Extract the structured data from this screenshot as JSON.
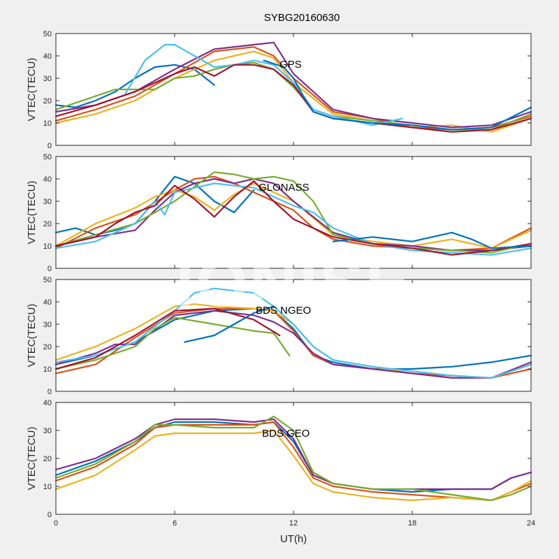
{
  "figure": {
    "title": "SYBG20160630",
    "watermark": "IONISE",
    "background_color": "#f0f0f0",
    "axes_color": "#ffffff"
  },
  "chart_data": [
    {
      "type": "line",
      "label": "GPS",
      "xlabel": "",
      "ylabel": "VTEC(TECU)",
      "xlim": [
        0,
        24
      ],
      "ylim": [
        0,
        50
      ],
      "xticks": [
        0,
        6,
        12,
        18,
        24
      ],
      "yticks": [
        0,
        10,
        20,
        30,
        40,
        50
      ],
      "series": [
        {
          "color": "#0072BD",
          "x": [
            0,
            1,
            2,
            3,
            4,
            5,
            6,
            7,
            8
          ],
          "y": [
            18,
            17,
            20,
            24,
            30,
            35,
            36,
            34,
            27
          ]
        },
        {
          "color": "#D95319",
          "x": [
            0,
            2,
            4,
            6,
            8,
            10,
            11,
            12,
            14,
            16,
            18,
            20,
            22,
            24
          ],
          "y": [
            11,
            16,
            22,
            32,
            42,
            44,
            40,
            30,
            15,
            12,
            8,
            7,
            8,
            13
          ]
        },
        {
          "color": "#EDB120",
          "x": [
            0,
            2,
            4,
            6,
            8,
            10,
            11,
            12,
            14,
            16,
            18,
            20,
            22,
            24
          ],
          "y": [
            10,
            14,
            20,
            30,
            38,
            42,
            39,
            28,
            14,
            11,
            8,
            9,
            6,
            12
          ]
        },
        {
          "color": "#7E2F8E",
          "x": [
            0,
            2,
            4,
            6,
            8,
            10,
            11,
            12,
            14,
            16,
            18,
            20,
            22,
            24
          ],
          "y": [
            15,
            18,
            24,
            34,
            43,
            45,
            46,
            32,
            16,
            12,
            10,
            8,
            9,
            15
          ]
        },
        {
          "color": "#77AC30",
          "x": [
            0,
            1,
            2,
            3,
            4,
            5,
            6,
            7,
            8,
            9,
            10,
            11,
            12,
            13,
            14,
            16,
            18,
            20,
            22,
            24
          ],
          "y": [
            16,
            19,
            22,
            25,
            25,
            25,
            30,
            31,
            34,
            36,
            37,
            34,
            26,
            16,
            13,
            11,
            9,
            7,
            7,
            14
          ]
        },
        {
          "color": "#4DBEEE",
          "x": [
            3.5,
            4.5,
            5.5,
            6,
            7,
            8,
            9,
            10,
            11,
            12,
            13,
            14,
            16,
            17.5
          ],
          "y": [
            23,
            38,
            45,
            45,
            40,
            35,
            36,
            38,
            36,
            28,
            16,
            13,
            9,
            12
          ]
        },
        {
          "color": "#A2142F",
          "x": [
            0,
            2,
            4,
            6,
            7,
            8,
            9,
            10,
            11,
            12,
            13,
            14,
            16,
            18,
            20,
            22,
            24
          ],
          "y": [
            13,
            18,
            24,
            32,
            35,
            31,
            36,
            36,
            34,
            27,
            15,
            12,
            10,
            8,
            6,
            7,
            12
          ]
        },
        {
          "color": "#0072BD",
          "x": [
            10.5,
            11.5,
            12,
            12.5,
            13,
            14,
            16,
            18,
            20,
            22,
            24
          ],
          "y": [
            38,
            35,
            30,
            22,
            15,
            12,
            10,
            9,
            7,
            8,
            17
          ]
        }
      ]
    },
    {
      "type": "line",
      "label": "GLONASS",
      "xlabel": "",
      "ylabel": "VTEC(TECU)",
      "xlim": [
        0,
        24
      ],
      "ylim": [
        0,
        50
      ],
      "xticks": [
        0,
        6,
        12,
        18,
        24
      ],
      "yticks": [
        0,
        10,
        20,
        30,
        40,
        50
      ],
      "series": [
        {
          "color": "#0072BD",
          "x": [
            0,
            1,
            2,
            3,
            4,
            5,
            6,
            7,
            8,
            9,
            10
          ],
          "y": [
            16,
            18,
            15,
            17,
            20,
            30,
            41,
            38,
            30,
            25,
            35
          ]
        },
        {
          "color": "#D95319",
          "x": [
            0,
            2,
            4,
            6,
            7,
            8,
            9,
            10,
            11,
            12,
            13,
            14,
            16,
            18,
            20,
            22,
            24
          ],
          "y": [
            9,
            18,
            24,
            35,
            40,
            41,
            38,
            34,
            30,
            26,
            18,
            13,
            10,
            9,
            8,
            9,
            18
          ]
        },
        {
          "color": "#EDB120",
          "x": [
            0,
            2,
            4,
            5,
            6,
            7,
            8,
            9,
            10,
            12,
            14,
            16,
            18,
            20,
            22,
            24
          ],
          "y": [
            10,
            20,
            27,
            32,
            35,
            32,
            26,
            33,
            38,
            30,
            15,
            12,
            10,
            13,
            9,
            17
          ]
        },
        {
          "color": "#7E2F8E",
          "x": [
            0,
            2,
            4,
            5,
            6,
            7,
            8,
            9,
            10,
            11,
            12,
            14,
            16,
            18,
            20,
            22,
            24
          ],
          "y": [
            10,
            14,
            17,
            26,
            34,
            38,
            40,
            38,
            40,
            38,
            30,
            16,
            11,
            10,
            8,
            8,
            10
          ]
        },
        {
          "color": "#77AC30",
          "x": [
            0,
            2,
            4,
            6,
            8,
            9,
            10,
            11,
            12,
            13,
            14,
            16,
            18,
            20,
            22,
            24
          ],
          "y": [
            10,
            15,
            20,
            30,
            43,
            42,
            40,
            41,
            39,
            30,
            15,
            11,
            9,
            8,
            7,
            11
          ]
        },
        {
          "color": "#4DBEEE",
          "x": [
            0,
            2,
            4,
            5,
            5.5,
            6,
            8,
            10,
            11,
            12,
            13,
            14,
            16,
            18,
            20,
            22,
            24
          ],
          "y": [
            9,
            12,
            20,
            30,
            24,
            34,
            38,
            36,
            32,
            28,
            25,
            18,
            11,
            8,
            7,
            6,
            9
          ]
        },
        {
          "color": "#A2142F",
          "x": [
            0,
            2,
            3,
            4,
            5,
            6,
            7,
            8,
            9,
            10,
            11,
            12,
            14,
            16,
            18,
            20,
            22,
            24
          ],
          "y": [
            10,
            14,
            20,
            25,
            28,
            37,
            31,
            23,
            32,
            39,
            30,
            22,
            14,
            11,
            9,
            6,
            8,
            11
          ]
        },
        {
          "color": "#0072BD",
          "x": [
            14,
            16,
            18,
            20,
            21,
            22,
            24
          ],
          "y": [
            12,
            14,
            12,
            16,
            13,
            9,
            10
          ]
        }
      ]
    },
    {
      "type": "line",
      "label": "BDS NGEO",
      "xlabel": "",
      "ylabel": "VTEC(TECU)",
      "xlim": [
        0,
        24
      ],
      "ylim": [
        0,
        50
      ],
      "xticks": [
        0,
        6,
        12,
        18,
        24
      ],
      "yticks": [
        0,
        10,
        20,
        30,
        40,
        50
      ],
      "series": [
        {
          "color": "#0072BD",
          "x": [
            0,
            2,
            4,
            6,
            8,
            10,
            11,
            12,
            13,
            14,
            16,
            18,
            20,
            22,
            24
          ],
          "y": [
            12,
            16,
            22,
            32,
            36,
            37,
            36,
            28,
            16,
            13,
            10,
            10,
            11,
            13,
            16
          ]
        },
        {
          "color": "#D95319",
          "x": [
            0,
            2,
            4,
            6,
            8,
            10,
            11,
            12,
            13,
            14,
            16,
            18,
            20,
            22,
            24
          ],
          "y": [
            8,
            12,
            24,
            35,
            37,
            37,
            36,
            27,
            16,
            12,
            10,
            8,
            7,
            6,
            10
          ]
        },
        {
          "color": "#EDB120",
          "x": [
            0,
            2,
            4,
            6,
            7,
            8,
            10,
            11,
            12,
            13,
            14,
            16,
            18,
            20,
            22,
            24
          ],
          "y": [
            14,
            20,
            28,
            38,
            39,
            38,
            37,
            36,
            30,
            20,
            14,
            11,
            8,
            6,
            6,
            12
          ]
        },
        {
          "color": "#7E2F8E",
          "x": [
            0,
            2,
            3,
            4,
            6,
            8,
            10,
            11,
            12,
            13,
            14,
            16,
            18,
            20,
            22,
            24
          ],
          "y": [
            12,
            17,
            21,
            21,
            34,
            36,
            34,
            31,
            26,
            17,
            12,
            10,
            8,
            6,
            6,
            13
          ]
        },
        {
          "color": "#77AC30",
          "x": [
            0,
            2,
            4,
            5,
            6,
            8,
            10,
            11,
            11.8
          ],
          "y": [
            10,
            14,
            20,
            28,
            33,
            30,
            27,
            26,
            16
          ]
        },
        {
          "color": "#4DBEEE",
          "x": [
            0,
            2,
            4,
            6,
            7,
            8,
            9,
            10,
            11,
            12,
            13,
            14,
            16,
            18,
            20,
            22,
            24
          ],
          "y": [
            13,
            16,
            22,
            36,
            44,
            46,
            45,
            44,
            38,
            30,
            20,
            14,
            11,
            9,
            7,
            6,
            12
          ]
        },
        {
          "color": "#A2142F",
          "x": [
            0,
            2,
            4,
            6,
            8,
            10,
            11.3
          ],
          "y": [
            10,
            15,
            25,
            36,
            37,
            32,
            25
          ]
        },
        {
          "color": "#0072BD",
          "x": [
            6.5,
            8,
            9,
            10,
            11
          ],
          "y": [
            22,
            25,
            30,
            35,
            38
          ]
        }
      ]
    },
    {
      "type": "line",
      "label": "BDS GEO",
      "xlabel": "UT(h)",
      "ylabel": "VTEC(TECU)",
      "xlim": [
        0,
        24
      ],
      "ylim": [
        0,
        40
      ],
      "xticks": [
        0,
        6,
        12,
        18,
        24
      ],
      "yticks": [
        0,
        10,
        20,
        30,
        40
      ],
      "series": [
        {
          "color": "#0072BD",
          "x": [
            0,
            2,
            4,
            5,
            6,
            8,
            10,
            11,
            12,
            13,
            14,
            16,
            18,
            20,
            22,
            23,
            24
          ],
          "y": [
            14,
            19,
            26,
            31,
            33,
            33,
            32,
            33,
            26,
            14,
            11,
            9,
            8,
            9,
            9,
            13,
            15
          ]
        },
        {
          "color": "#D95319",
          "x": [
            0,
            2,
            4,
            5,
            6,
            8,
            10,
            11,
            12,
            13,
            14,
            16,
            18,
            20,
            22,
            23,
            24
          ],
          "y": [
            12,
            17,
            25,
            31,
            32,
            32,
            32,
            33,
            24,
            13,
            10,
            8,
            7,
            6,
            5,
            8,
            11
          ]
        },
        {
          "color": "#EDB120",
          "x": [
            0,
            2,
            4,
            5,
            6,
            8,
            10,
            11,
            12,
            13,
            14,
            16,
            18,
            20,
            22,
            23,
            24
          ],
          "y": [
            9,
            14,
            23,
            28,
            29,
            29,
            29,
            30,
            21,
            11,
            8,
            6,
            5,
            6,
            5,
            8,
            12
          ]
        },
        {
          "color": "#7E2F8E",
          "x": [
            0,
            2,
            4,
            5,
            6,
            8,
            10,
            11,
            12,
            13,
            14,
            16,
            18,
            20,
            22,
            23,
            24
          ],
          "y": [
            16,
            20,
            27,
            32,
            34,
            34,
            33,
            34,
            27,
            14,
            11,
            9,
            9,
            9,
            9,
            13,
            15
          ]
        },
        {
          "color": "#77AC30",
          "x": [
            0,
            2,
            4,
            5,
            6,
            8,
            10,
            11,
            12,
            13,
            14,
            16,
            18,
            20,
            22,
            23,
            24
          ],
          "y": [
            13,
            18,
            26,
            32,
            32,
            31,
            31,
            35,
            30,
            15,
            11,
            9,
            9,
            7,
            5,
            7,
            10
          ]
        }
      ]
    }
  ]
}
